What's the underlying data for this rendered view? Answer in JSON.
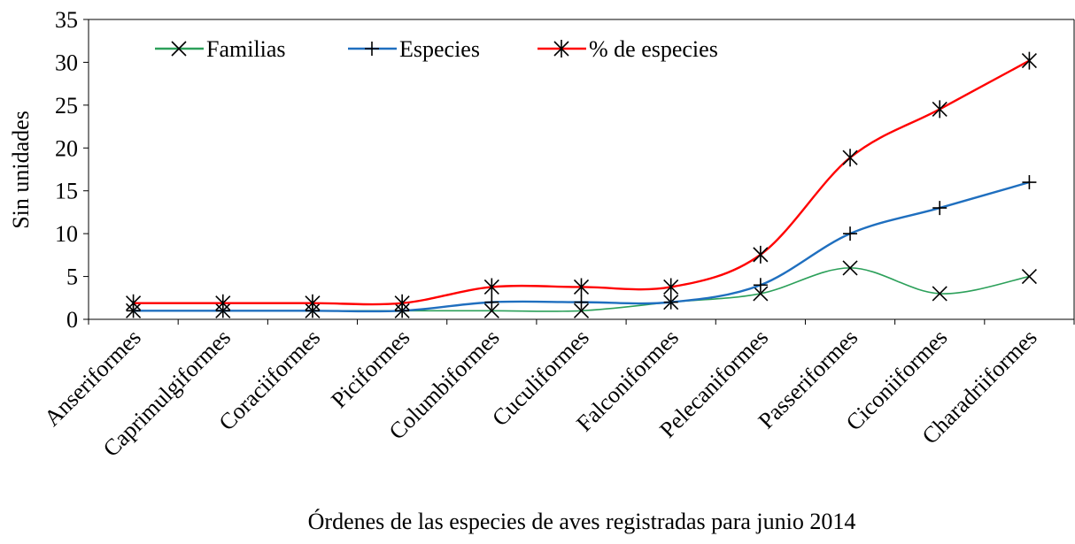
{
  "chart_data": {
    "type": "line",
    "x_label": "Órdenes de las especies de aves registradas para junio 2014",
    "y_label": "Sin unidades",
    "categories": [
      "Anseriformes",
      "Caprimulgiformes",
      "Coraciiformes",
      "Piciformes",
      "Columbiformes",
      "Cuculiformes",
      "Falconiformes",
      "Pelecaniformes",
      "Passeriformes",
      "Ciconiiformes",
      "Charadriiformes"
    ],
    "series": [
      {
        "name": "Familias",
        "color": "#2ca05a",
        "marker": "x",
        "values": [
          1,
          1,
          1,
          1,
          1,
          1,
          2,
          3,
          6,
          3,
          5
        ]
      },
      {
        "name": "Especies",
        "color": "#1f6fbf",
        "marker": "+",
        "values": [
          1,
          1,
          1,
          1,
          2,
          2,
          2,
          4,
          10,
          13,
          16
        ]
      },
      {
        "name": "% de especies",
        "color": "#ff0000",
        "marker": "*",
        "values": [
          1.89,
          1.89,
          1.89,
          1.89,
          3.77,
          3.77,
          3.77,
          7.55,
          18.87,
          24.53,
          30.19
        ]
      }
    ],
    "ylim": [
      0,
      35
    ],
    "yticks": [
      0,
      5,
      10,
      15,
      20,
      25,
      30,
      35
    ],
    "smooth": true,
    "grid": false,
    "legend": "top-left"
  }
}
